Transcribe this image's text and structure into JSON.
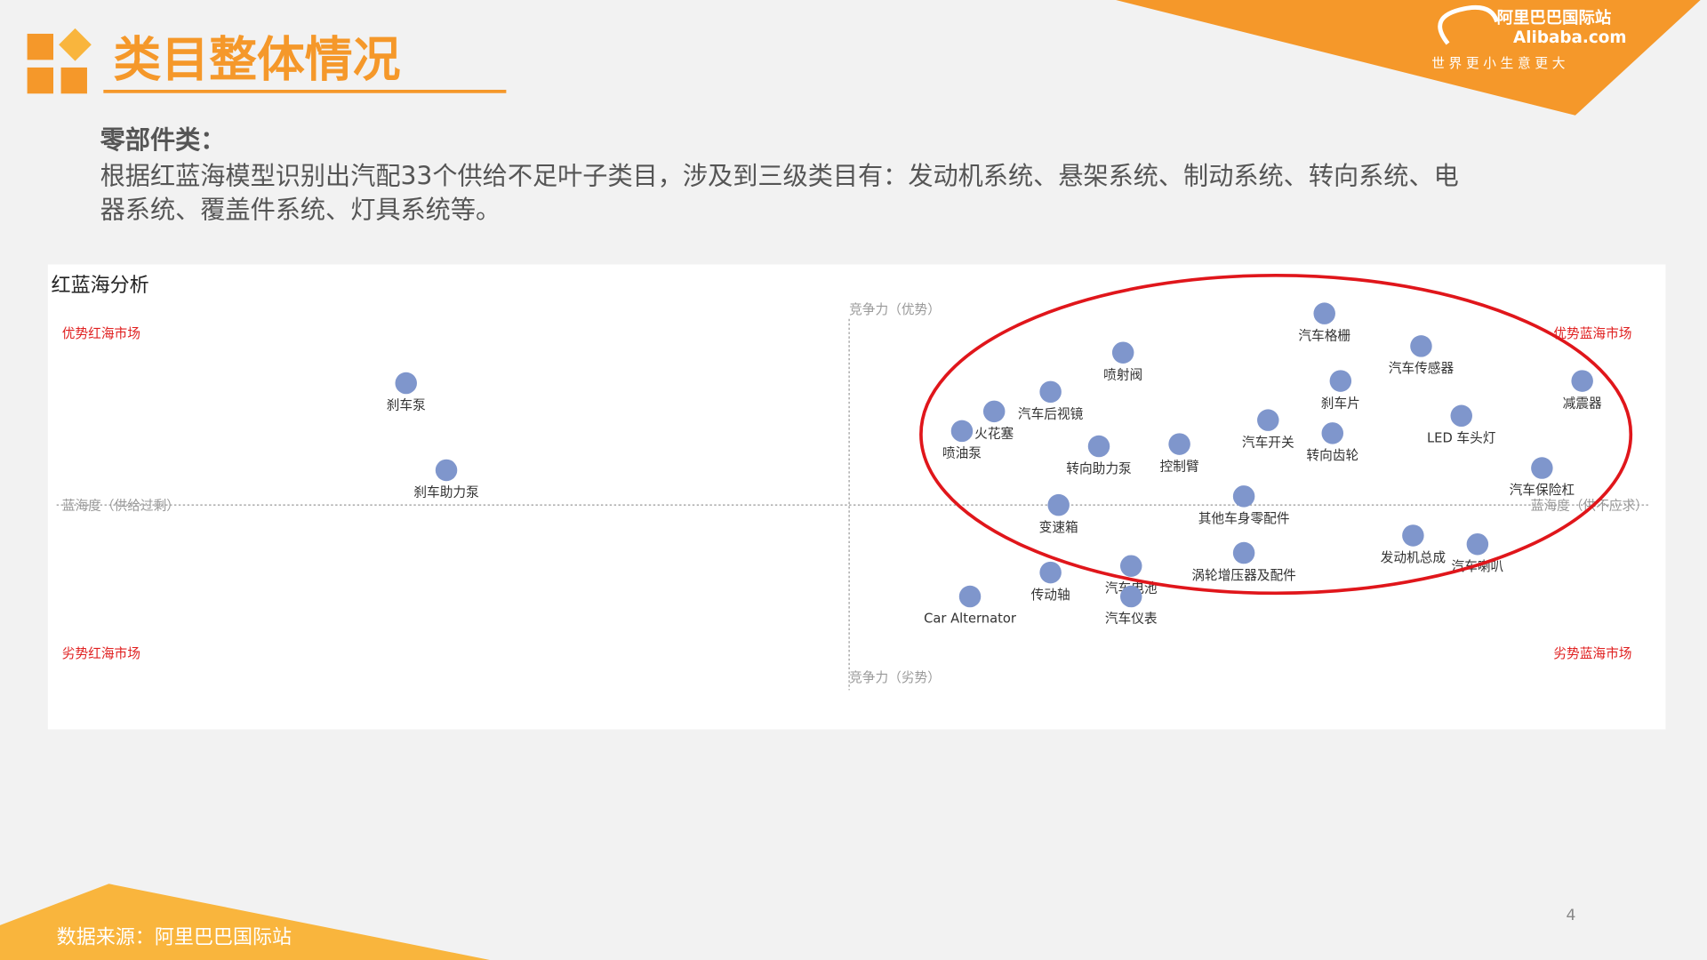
{
  "header": {
    "title": "类目整体情况",
    "logo_cn": "阿里巴巴国际站",
    "logo_en": "Alibaba.com",
    "slogan": "世 界 更 小  生 意 更 大"
  },
  "body": {
    "heading": "零部件类：",
    "lines": [
      "根据红蓝海模型识别出汽配33个供给不足叶子类目，涉及到三级类目有：发动机系统、悬架系统、制动系统、转向系统、电",
      "器系统、覆盖件系统、灯具系统等。"
    ]
  },
  "chart_data": {
    "type": "scatter",
    "title": "红蓝海分析",
    "quadrants": [
      "优势红海市场",
      "优势蓝海市场",
      "劣势红海市场",
      "劣势蓝海市场"
    ],
    "y_axis_labels": [
      "竞争力（优势）",
      "竞争力（劣势）"
    ],
    "x_axis_labels": [
      "蓝海度（供给过剩）",
      "蓝海度（供不应求）"
    ],
    "color": "#7f96cc",
    "xlim": [
      -100,
      100
    ],
    "ylim": [
      -100,
      100
    ],
    "labels": [
      "刹车泵",
      "刹车助力泵",
      "汽车格栅",
      "喷射阀",
      "汽车传感器",
      "刹车片",
      "减震器",
      "汽车后视镜",
      "火花塞",
      "喷油泵",
      "汽车开关",
      "LED 车头灯",
      "转向齿轮",
      "转向助力泵",
      "控制臂",
      "汽车保险杠",
      "其他车身零配件",
      "变速箱",
      "发动机总成",
      "汽车喇叭",
      "涡轮增压器及配件",
      "汽车电池",
      "传动轴",
      "汽车仪表",
      "Car Alternator"
    ],
    "x": [
      -55,
      -50,
      59,
      34,
      71,
      61,
      91,
      25,
      18,
      14,
      52,
      76,
      60,
      31,
      41,
      86,
      49,
      26,
      70,
      78,
      49,
      35,
      25,
      35,
      15
    ],
    "values": [
      56,
      16,
      88,
      70,
      73,
      57,
      57,
      52,
      43,
      34,
      39,
      41,
      33,
      27,
      28,
      17,
      4,
      0,
      -14,
      -18,
      -22,
      -28,
      -31,
      -42,
      -42
    ]
  },
  "footer": {
    "source": "数据来源：阿里巴巴国际站",
    "page": "4"
  }
}
